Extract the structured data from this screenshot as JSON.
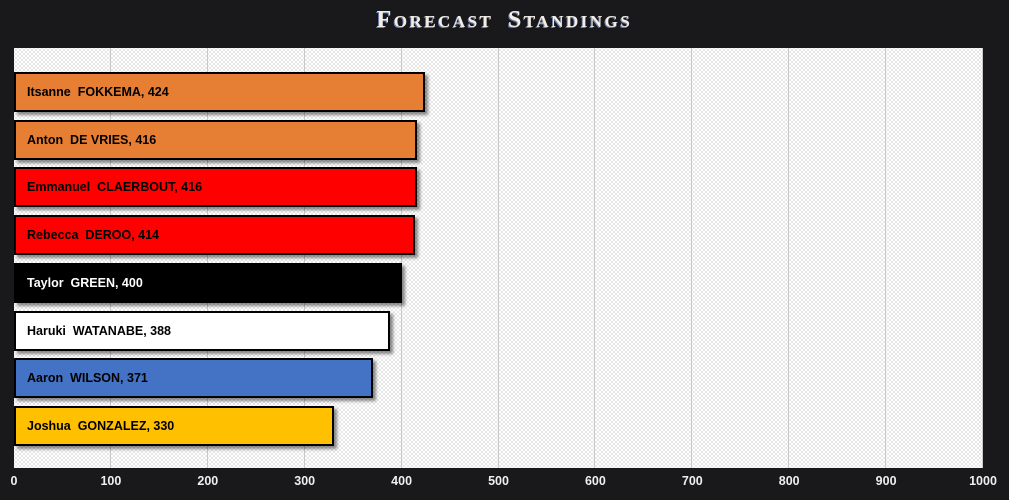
{
  "title": "Forecast Standings",
  "colors": {
    "page_bg": "#19191c",
    "plot_bg": "#ffffff",
    "plot_dots": "#d2d2d2",
    "gridline": "#c9c9c9",
    "axis_text": "#efefef",
    "bar_border": "#000000",
    "title_text": "#f3ede3",
    "title_shadow": "#6d80a8"
  },
  "chart_data": {
    "type": "bar",
    "orientation": "horizontal",
    "title": "Forecast Standings",
    "xlabel": "",
    "ylabel": "",
    "xlim": [
      0,
      1000
    ],
    "x_ticks": [
      0,
      100,
      200,
      300,
      400,
      500,
      600,
      700,
      800,
      900,
      1000
    ],
    "grid": true,
    "legend": false,
    "bars": [
      {
        "name": "Itsanne FOKKEMA",
        "label": "Itsanne  FOKKEMA, 424",
        "value": 424,
        "color": "#e67e33",
        "text_color": "#000000"
      },
      {
        "name": "Anton DE VRIES",
        "label": "Anton  DE VRIES, 416",
        "value": 416,
        "color": "#e67e33",
        "text_color": "#000000"
      },
      {
        "name": "Emmanuel CLAERBOUT",
        "label": "Emmanuel  CLAERBOUT, 416",
        "value": 416,
        "color": "#ff0000",
        "text_color": "#000000"
      },
      {
        "name": "Rebecca DEROO",
        "label": "Rebecca  DEROO, 414",
        "value": 414,
        "color": "#ff0000",
        "text_color": "#000000"
      },
      {
        "name": "Taylor GREEN",
        "label": "Taylor  GREEN, 400",
        "value": 400,
        "color": "#000000",
        "text_color": "#ffffff"
      },
      {
        "name": "Haruki WATANABE",
        "label": "Haruki  WATANABE, 388",
        "value": 388,
        "color": "#ffffff",
        "text_color": "#000000"
      },
      {
        "name": "Aaron WILSON",
        "label": "Aaron  WILSON, 371",
        "value": 371,
        "color": "#4472c4",
        "text_color": "#000000"
      },
      {
        "name": "Joshua GONZALEZ",
        "label": "Joshua  GONZALEZ, 330",
        "value": 330,
        "color": "#ffc000",
        "text_color": "#000000"
      }
    ]
  }
}
